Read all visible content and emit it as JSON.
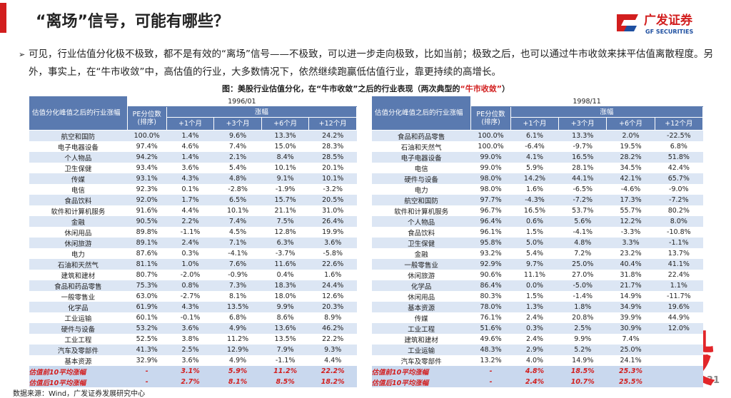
{
  "header": {
    "title": "“离场”信号，可能有哪些？",
    "logo_cn": "广发证券",
    "logo_en": "GF SECURITIES"
  },
  "bullet": {
    "marker": "➢",
    "text": "可见，行业估值分化极不极致，都不是有效的“离场”信号——不极致，可以进一步走向极致，比如当前；极致之后，也可以通过牛市收敛来抹平估值离散程度。另外，事实上，在“牛市收敛”中，高估值的行业，大多数情况下，依然继续跑赢低估值行业，靠更持续的高增长。"
  },
  "caption": {
    "main": "图：美股行业估值分化，在“牛市收敛”之后的行业表现（两次典型的",
    "highlight": "“牛市收敛”",
    "end": "）"
  },
  "tables": [
    {
      "corner": "估值分化峰值之后的行业涨幅",
      "date": "1996/01",
      "pe_header": "PE分位数\n(排序)",
      "gain_header": "涨幅",
      "columns": [
        "+1个月",
        "+3个月",
        "+6个月",
        "+12个月"
      ],
      "rows": [
        [
          "航空和国防",
          "100.0%",
          "1.4%",
          "9.6%",
          "13.3%",
          "24.2%"
        ],
        [
          "电子电器设备",
          "97.4%",
          "4.6%",
          "7.4%",
          "15.0%",
          "28.3%"
        ],
        [
          "个人物品",
          "94.2%",
          "1.4%",
          "2.1%",
          "8.4%",
          "28.5%"
        ],
        [
          "卫生保健",
          "93.4%",
          "3.6%",
          "5.4%",
          "10.1%",
          "20.1%"
        ],
        [
          "传媒",
          "93.1%",
          "4.3%",
          "4.8%",
          "9.1%",
          "10.1%"
        ],
        [
          "电信",
          "92.3%",
          "0.1%",
          "-2.8%",
          "-1.9%",
          "-3.2%"
        ],
        [
          "食品饮料",
          "92.0%",
          "1.7%",
          "6.5%",
          "15.7%",
          "20.5%"
        ],
        [
          "软件和计算机服务",
          "91.6%",
          "4.4%",
          "10.1%",
          "21.1%",
          "31.0%"
        ],
        [
          "金融",
          "90.5%",
          "2.2%",
          "7.4%",
          "7.5%",
          "26.4%"
        ],
        [
          "休闲用品",
          "89.8%",
          "-1.1%",
          "4.5%",
          "12.8%",
          "19.9%"
        ],
        [
          "休闲旅游",
          "89.1%",
          "2.4%",
          "7.1%",
          "6.3%",
          "3.6%"
        ],
        [
          "电力",
          "87.6%",
          "0.3%",
          "-4.1%",
          "-3.7%",
          "-5.8%"
        ],
        [
          "石油和天然气",
          "81.1%",
          "1.0%",
          "7.6%",
          "11.6%",
          "22.6%"
        ],
        [
          "建筑和建材",
          "80.7%",
          "-2.0%",
          "-0.9%",
          "0.4%",
          "1.6%"
        ],
        [
          "食品和药品零售",
          "75.3%",
          "0.8%",
          "7.3%",
          "18.3%",
          "24.4%"
        ],
        [
          "一般零售业",
          "63.0%",
          "-2.7%",
          "8.1%",
          "18.0%",
          "12.6%"
        ],
        [
          "化学品",
          "61.9%",
          "4.3%",
          "13.5%",
          "9.9%",
          "20.3%"
        ],
        [
          "工业运输",
          "60.1%",
          "-0.1%",
          "6.8%",
          "8.6%",
          "8.9%"
        ],
        [
          "硬件与设备",
          "53.2%",
          "3.6%",
          "4.9%",
          "13.6%",
          "46.2%"
        ],
        [
          "工业工程",
          "52.5%",
          "3.8%",
          "11.2%",
          "13.5%",
          "22.2%"
        ],
        [
          "汽车及零部件",
          "41.3%",
          "2.5%",
          "12.9%",
          "7.9%",
          "9.3%"
        ],
        [
          "基本资源",
          "32.9%",
          "3.6%",
          "4.9%",
          "-1.1%",
          "4.4%"
        ]
      ],
      "avg_rows": [
        [
          "估值前10平均涨幅",
          "-",
          "3.1%",
          "5.9%",
          "11.2%",
          "22.2%"
        ],
        [
          "估值后10平均涨幅",
          "-",
          "2.7%",
          "8.1%",
          "8.5%",
          "18.2%"
        ]
      ]
    },
    {
      "corner": "估值分化峰值之后的行业涨幅",
      "date": "1998/11",
      "pe_header": "PE分位数\n(排序)",
      "gain_header": "涨幅",
      "columns": [
        "+1个月",
        "+3个月",
        "+6个月",
        "+12个月"
      ],
      "rows": [
        [
          "食品和药品零售",
          "100.0%",
          "6.1%",
          "13.3%",
          "2.0%",
          "-22.5%"
        ],
        [
          "石油和天然气",
          "100.0%",
          "-6.4%",
          "-9.7%",
          "19.5%",
          "6.8%"
        ],
        [
          "电子电器设备",
          "99.0%",
          "4.1%",
          "16.5%",
          "28.2%",
          "51.8%"
        ],
        [
          "电信",
          "99.0%",
          "5.9%",
          "28.1%",
          "34.5%",
          "42.4%"
        ],
        [
          "硬件与设备",
          "98.0%",
          "14.2%",
          "44.1%",
          "42.1%",
          "65.7%"
        ],
        [
          "电力",
          "98.0%",
          "1.6%",
          "-6.5%",
          "-4.6%",
          "-9.0%"
        ],
        [
          "航空和国防",
          "97.7%",
          "-4.3%",
          "-7.2%",
          "17.3%",
          "-7.2%"
        ],
        [
          "软件和计算机服务",
          "96.7%",
          "16.5%",
          "53.7%",
          "55.7%",
          "80.2%"
        ],
        [
          "个人物品",
          "96.4%",
          "0.6%",
          "5.6%",
          "12.2%",
          "8.0%"
        ],
        [
          "食品饮料",
          "96.1%",
          "1.5%",
          "-4.1%",
          "-3.3%",
          "-10.8%"
        ],
        [
          "卫生保健",
          "95.8%",
          "5.0%",
          "4.8%",
          "3.3%",
          "-1.1%"
        ],
        [
          "金融",
          "93.2%",
          "5.4%",
          "7.2%",
          "23.2%",
          "13.7%"
        ],
        [
          "一般零售业",
          "92.9%",
          "9.7%",
          "25.0%",
          "40.4%",
          "41.1%"
        ],
        [
          "休闲旅游",
          "90.6%",
          "11.1%",
          "27.0%",
          "31.8%",
          "22.4%"
        ],
        [
          "化学品",
          "86.4%",
          "0.0%",
          "-5.0%",
          "21.7%",
          "1.1%"
        ],
        [
          "休闲用品",
          "80.3%",
          "1.5%",
          "-1.4%",
          "14.9%",
          "-11.7%"
        ],
        [
          "基本资源",
          "78.0%",
          "1.3%",
          "1.8%",
          "34.9%",
          "19.6%"
        ],
        [
          "传媒",
          "76.1%",
          "2.4%",
          "20.8%",
          "39.9%",
          "44.9%"
        ],
        [
          "工业工程",
          "51.6%",
          "0.3%",
          "2.5%",
          "30.9%",
          "12.0%"
        ],
        [
          "建筑和建材",
          "49.6%",
          "2.4%",
          "9.9%",
          "7.4%",
          null
        ],
        [
          "工业运输",
          "48.3%",
          "2.9%",
          "5.2%",
          "25.0%",
          null
        ],
        [
          "汽车及零部件",
          "13.2%",
          "4.0%",
          "14.9%",
          "24.1%",
          null
        ]
      ],
      "avg_rows": [
        [
          "估值前10平均涨幅",
          "-",
          "4.8%",
          "18.5%",
          "25.3%",
          null
        ],
        [
          "估值后10平均涨幅",
          "-",
          "2.4%",
          "10.7%",
          "25.5%",
          null
        ]
      ]
    }
  ],
  "source": "数据来源：Wind，广发证券发展研究中心",
  "page_number": "31",
  "watermark": "股"
}
